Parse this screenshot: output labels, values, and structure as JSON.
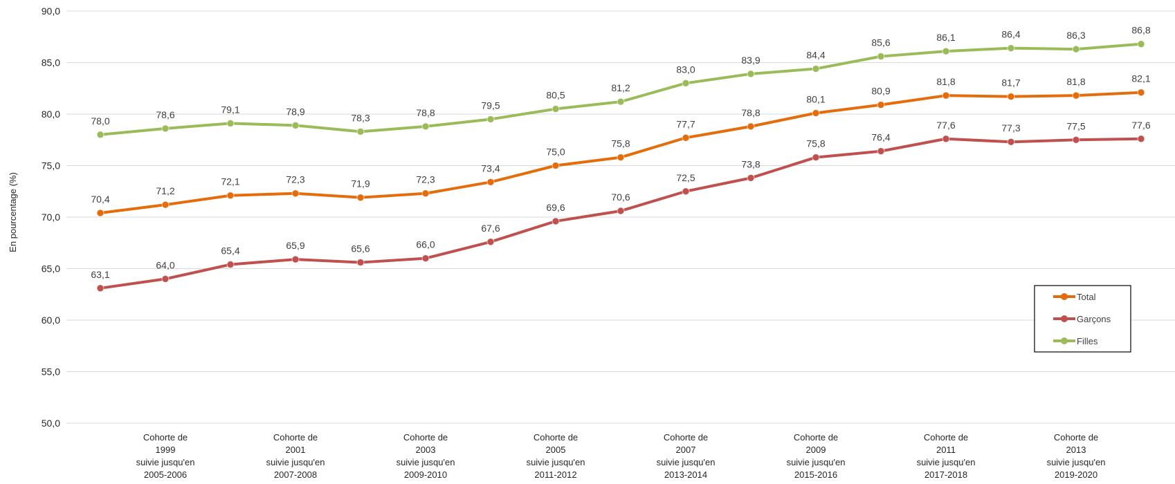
{
  "chart_data": {
    "type": "line",
    "ylabel": "En pourcentage (%)",
    "ylim": [
      50,
      90
    ],
    "yticks": [
      "50,0",
      "55,0",
      "60,0",
      "65,0",
      "70,0",
      "75,0",
      "80,0",
      "85,0",
      "90,0"
    ],
    "grid": true,
    "legend_position": "bottom-right",
    "x": [
      "1999",
      "2000",
      "2001",
      "2002",
      "2003",
      "2004",
      "2005",
      "2006",
      "2007",
      "2008",
      "2009",
      "2010",
      "2011",
      "2012",
      "2013",
      "2014",
      "2015"
    ],
    "category_labels": [
      {
        "lines": [
          "Cohorte de",
          "1999",
          "suivie jusqu'en",
          "2005-2006"
        ],
        "x_index": 1
      },
      {
        "lines": [
          "Cohorte de",
          "2001",
          "suivie jusqu'en",
          "2007-2008"
        ],
        "x_index": 3
      },
      {
        "lines": [
          "Cohorte de",
          "2003",
          "suivie jusqu'en",
          "2009-2010"
        ],
        "x_index": 5
      },
      {
        "lines": [
          "Cohorte de",
          "2005",
          "suivie jusqu'en",
          "2011-2012"
        ],
        "x_index": 7
      },
      {
        "lines": [
          "Cohorte de",
          "2007",
          "suivie jusqu'en",
          "2013-2014"
        ],
        "x_index": 9
      },
      {
        "lines": [
          "Cohorte de",
          "2009",
          "suivie jusqu'en",
          "2015-2016"
        ],
        "x_index": 11
      },
      {
        "lines": [
          "Cohorte de",
          "2011",
          "suivie jusqu'en",
          "2017-2018"
        ],
        "x_index": 13
      },
      {
        "lines": [
          "Cohorte de",
          "2013",
          "suivie jusqu'en",
          "2019-2020"
        ],
        "x_index": 15
      }
    ],
    "series": [
      {
        "name": "Total",
        "color": "#E46C0A",
        "values": [
          70.4,
          71.2,
          72.1,
          72.3,
          71.9,
          72.3,
          73.4,
          75.0,
          75.8,
          77.7,
          78.8,
          80.1,
          80.9,
          81.8,
          81.7,
          81.8,
          82.1
        ],
        "labels": [
          "70,4",
          "71,2",
          "72,1",
          "72,3",
          "71,9",
          "72,3",
          "73,4",
          "75,0",
          "75,8",
          "77,7",
          "78,8",
          "80,1",
          "80,9",
          "81,8",
          "81,7",
          "81,8",
          "82,1"
        ]
      },
      {
        "name": "Garçons",
        "color": "#C0504D",
        "values": [
          63.1,
          64.0,
          65.4,
          65.9,
          65.6,
          66.0,
          67.6,
          69.6,
          70.6,
          72.5,
          73.8,
          75.8,
          76.4,
          77.6,
          77.3,
          77.5,
          77.6
        ],
        "labels": [
          "63,1",
          "64,0",
          "65,4",
          "65,9",
          "65,6",
          "66,0",
          "67,6",
          "69,6",
          "70,6",
          "72,5",
          "73,8",
          "75,8",
          "76,4",
          "77,6",
          "77,3",
          "77,5",
          "77,6"
        ]
      },
      {
        "name": "Filles",
        "color": "#9BBB59",
        "values": [
          78.0,
          78.6,
          79.1,
          78.9,
          78.3,
          78.8,
          79.5,
          80.5,
          81.2,
          83.0,
          83.9,
          84.4,
          85.6,
          86.1,
          86.4,
          86.3,
          86.8
        ],
        "labels": [
          "78,0",
          "78,6",
          "79,1",
          "78,9",
          "78,3",
          "78,8",
          "79,5",
          "80,5",
          "81,2",
          "83,0",
          "83,9",
          "84,4",
          "85,6",
          "86,1",
          "86,4",
          "86,3",
          "86,8"
        ]
      }
    ],
    "legend": [
      "Total",
      "Garçons",
      "Filles"
    ]
  }
}
